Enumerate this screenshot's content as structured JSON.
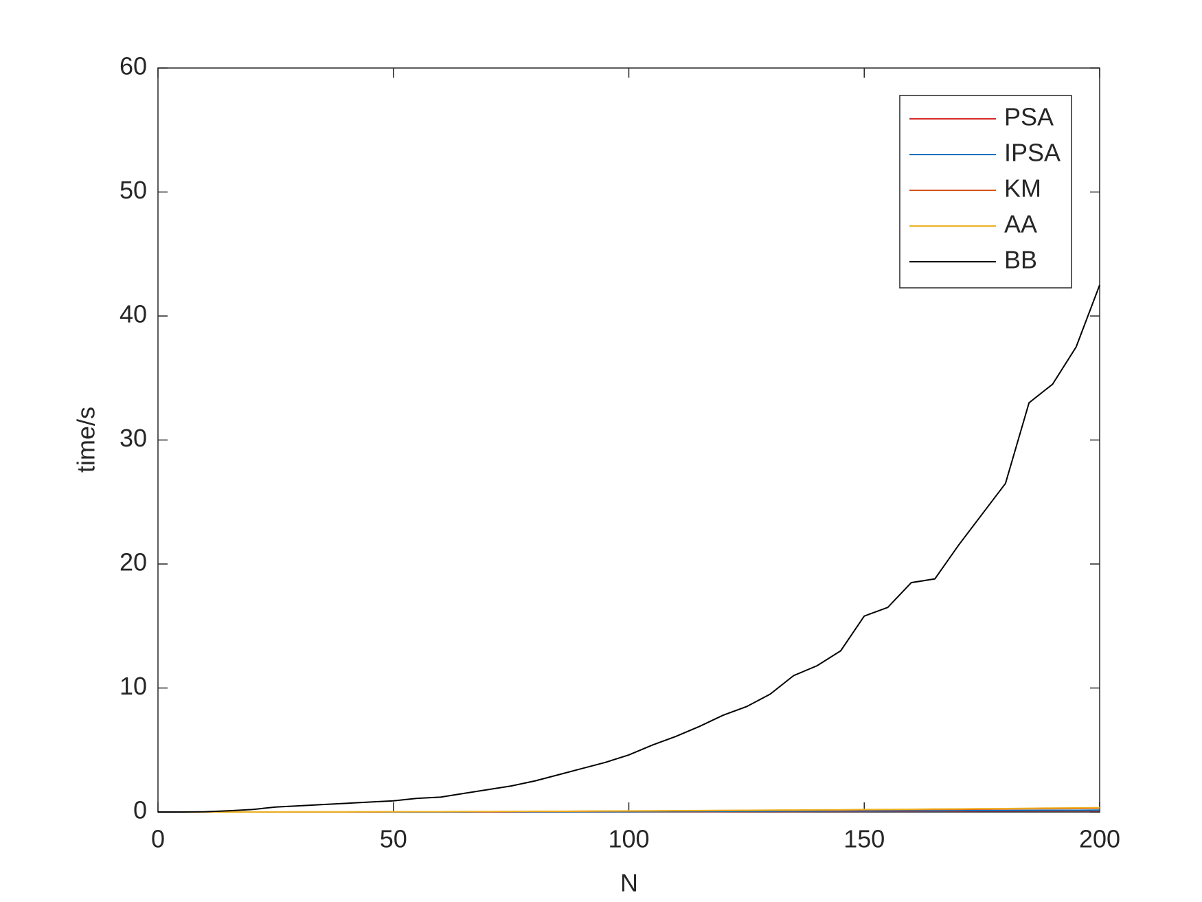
{
  "chart_data": {
    "type": "line",
    "x_label": "N",
    "y_label": "time/s",
    "x": [
      0,
      5,
      10,
      15,
      20,
      25,
      30,
      35,
      40,
      45,
      50,
      55,
      60,
      65,
      70,
      75,
      80,
      85,
      90,
      95,
      100,
      105,
      110,
      115,
      120,
      125,
      130,
      135,
      140,
      145,
      150,
      155,
      160,
      165,
      170,
      175,
      180,
      185,
      190,
      195,
      200
    ],
    "series": [
      {
        "name": "PSA",
        "color": "#d62728",
        "values": [
          0,
          0,
          0,
          0,
          0,
          0,
          0,
          0,
          0,
          0,
          0.01,
          0.01,
          0.01,
          0.01,
          0.01,
          0.01,
          0.02,
          0.02,
          0.02,
          0.02,
          0.02,
          0.03,
          0.03,
          0.03,
          0.03,
          0.04,
          0.04,
          0.04,
          0.05,
          0.05,
          0.05,
          0.06,
          0.06,
          0.07,
          0.07,
          0.08,
          0.08,
          0.09,
          0.09,
          0.1,
          0.1
        ]
      },
      {
        "name": "IPSA",
        "color": "#0072bd",
        "values": [
          0,
          0,
          0,
          0,
          0,
          0,
          0,
          0,
          0,
          0.01,
          0.01,
          0.01,
          0.01,
          0.01,
          0.02,
          0.02,
          0.02,
          0.02,
          0.03,
          0.03,
          0.03,
          0.04,
          0.04,
          0.05,
          0.05,
          0.06,
          0.06,
          0.07,
          0.07,
          0.08,
          0.08,
          0.09,
          0.1,
          0.1,
          0.11,
          0.12,
          0.12,
          0.13,
          0.14,
          0.14,
          0.15
        ]
      },
      {
        "name": "KM",
        "color": "#d95319",
        "values": [
          0,
          0,
          0,
          0,
          0,
          0,
          0.01,
          0.01,
          0.01,
          0.01,
          0.02,
          0.02,
          0.02,
          0.03,
          0.03,
          0.04,
          0.05,
          0.05,
          0.06,
          0.07,
          0.07,
          0.08,
          0.09,
          0.1,
          0.11,
          0.12,
          0.13,
          0.13,
          0.14,
          0.15,
          0.17,
          0.18,
          0.19,
          0.2,
          0.21,
          0.23,
          0.24,
          0.26,
          0.27,
          0.28,
          0.3
        ]
      },
      {
        "name": "AA",
        "color": "#edb120",
        "values": [
          0,
          0,
          0,
          0,
          0,
          0.01,
          0.01,
          0.01,
          0.01,
          0.02,
          0.02,
          0.03,
          0.03,
          0.04,
          0.04,
          0.05,
          0.06,
          0.06,
          0.07,
          0.08,
          0.09,
          0.1,
          0.11,
          0.12,
          0.13,
          0.14,
          0.15,
          0.16,
          0.17,
          0.18,
          0.2,
          0.21,
          0.22,
          0.24,
          0.25,
          0.27,
          0.28,
          0.3,
          0.32,
          0.33,
          0.35
        ]
      },
      {
        "name": "BB",
        "color": "#000000",
        "values": [
          0,
          0,
          0.02,
          0.1,
          0.2,
          0.4,
          0.5,
          0.6,
          0.7,
          0.8,
          0.9,
          1.1,
          1.2,
          1.5,
          1.8,
          2.1,
          2.5,
          3.0,
          3.5,
          4.0,
          4.6,
          5.4,
          6.1,
          6.9,
          7.8,
          8.5,
          9.5,
          11.0,
          11.8,
          13.0,
          15.8,
          16.5,
          18.5,
          18.8,
          21.5,
          24.0,
          26.5,
          33.0,
          34.5,
          37.5,
          42.5
        ]
      }
    ],
    "xlim": [
      0,
      200
    ],
    "xticks": [
      0,
      50,
      100,
      150,
      200
    ],
    "ylim": [
      0,
      60
    ],
    "yticks": [
      0,
      10,
      20,
      30,
      40,
      50,
      60
    ],
    "legend": "upper right"
  }
}
